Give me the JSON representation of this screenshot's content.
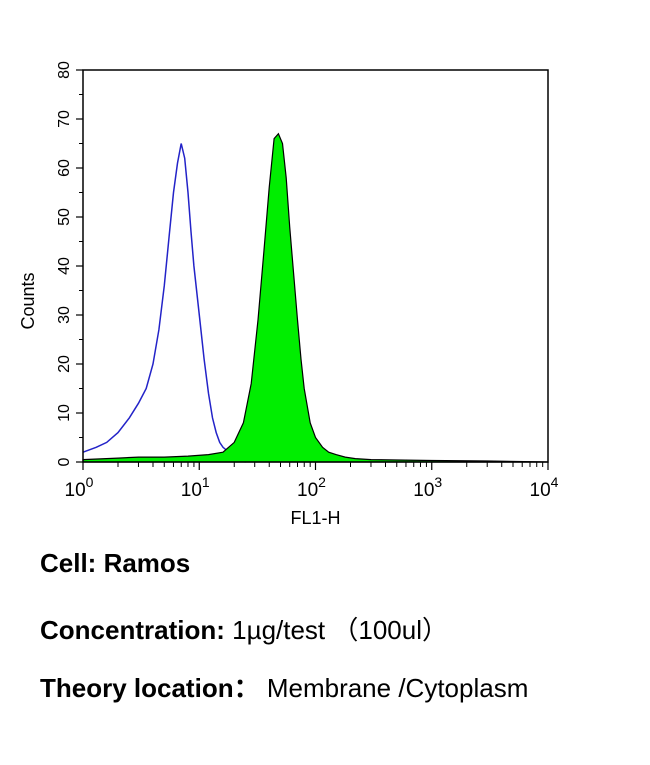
{
  "chart_data": {
    "type": "area",
    "xlabel": "FL1-H",
    "ylabel": "Counts",
    "x_scale": "log",
    "xlim": [
      1,
      10000
    ],
    "ylim": [
      0,
      80
    ],
    "y_ticks": [
      0,
      10,
      20,
      30,
      40,
      50,
      60,
      70,
      80
    ],
    "x_ticks": [
      {
        "value": 1,
        "base": "10",
        "exp": "0"
      },
      {
        "value": 10,
        "base": "10",
        "exp": "1"
      },
      {
        "value": 100,
        "base": "10",
        "exp": "2"
      },
      {
        "value": 1000,
        "base": "10",
        "exp": "3"
      },
      {
        "value": 10000,
        "base": "10",
        "exp": "4"
      }
    ],
    "grid": false,
    "series": [
      {
        "style": "outline",
        "color": "#2323c8",
        "x": [
          1,
          1.3,
          1.6,
          2,
          2.5,
          3,
          3.5,
          4,
          4.5,
          5,
          5.5,
          6,
          6.5,
          7,
          7.5,
          8,
          8.5,
          9,
          10,
          11,
          12,
          13,
          14,
          15,
          16,
          18,
          20,
          22,
          25
        ],
        "y": [
          2,
          3,
          4,
          6,
          9,
          12,
          15,
          20,
          27,
          36,
          46,
          55,
          61,
          65,
          62,
          55,
          47,
          40,
          30,
          21,
          14,
          9,
          6,
          4,
          3,
          2,
          1,
          0.5,
          0
        ]
      },
      {
        "style": "filled",
        "color": "#00ee00",
        "x": [
          1,
          2,
          3,
          5,
          8,
          12,
          16,
          20,
          24,
          28,
          32,
          36,
          40,
          44,
          48,
          52,
          56,
          60,
          65,
          70,
          75,
          80,
          90,
          100,
          115,
          130,
          150,
          180,
          220,
          300,
          500,
          1000,
          3000,
          10000
        ],
        "y": [
          0.5,
          0.8,
          1,
          1,
          1.2,
          1.5,
          2,
          4,
          8,
          16,
          29,
          43,
          56,
          66,
          67,
          65,
          58,
          48,
          38,
          29,
          21,
          15,
          8,
          5,
          3,
          2,
          1.5,
          1,
          0.7,
          0.5,
          0.4,
          0.3,
          0.2,
          0
        ]
      }
    ]
  },
  "caption": {
    "cell_label": "Cell: Ramos",
    "concentration_label": "Concentration:",
    "concentration_value": "1µg/test （100ul）",
    "location_label": "Theory location：",
    "location_value": "Membrane /Cytoplasm"
  }
}
